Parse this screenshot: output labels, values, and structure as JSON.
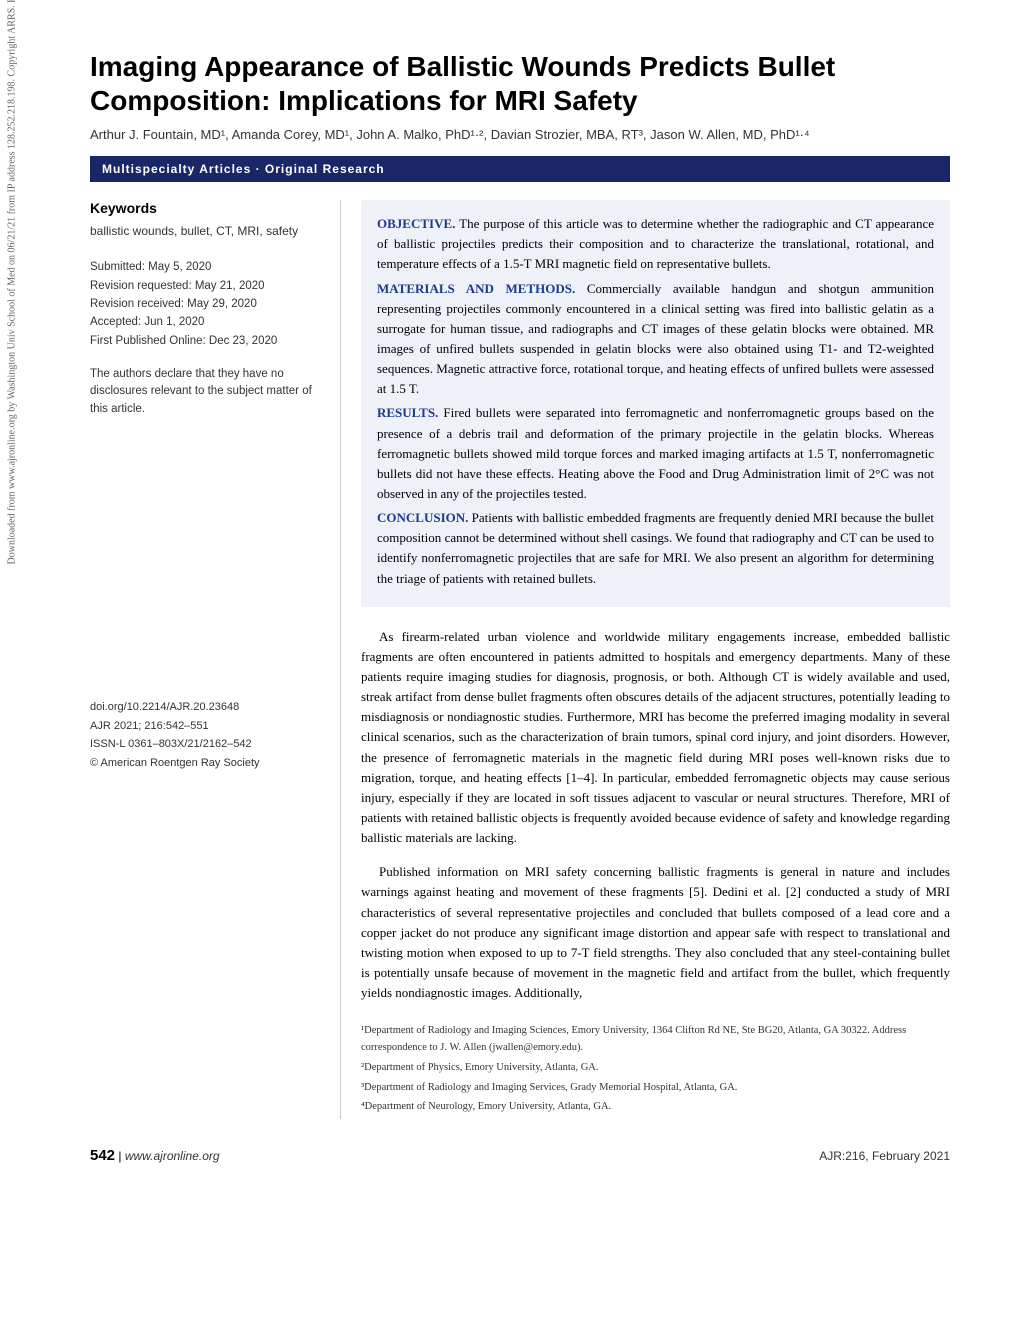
{
  "watermark": "Downloaded from www.ajronline.org by Washington Univ School of Med on 06/21/21 from IP address 128.252.218.198. Copyright ARRS. For personal use only; all rights reserved",
  "title": "Imaging Appearance of Ballistic Wounds Predicts Bullet Composition: Implications for MRI Safety",
  "authors": "Arthur J. Fountain, MD¹, Amanda Corey, MD¹, John A. Malko, PhD¹·², Davian Strozier, MBA, RT³, Jason W. Allen, MD, PhD¹·⁴",
  "section_bar": "Multispecialty Articles · Original Research",
  "sidebar": {
    "keywords_heading": "Keywords",
    "keywords": "ballistic wounds, bullet, CT, MRI, safety",
    "dates": {
      "submitted": "Submitted: May 5, 2020",
      "revision_requested": "Revision requested: May 21, 2020",
      "revision_received": "Revision received: May 29, 2020",
      "accepted": "Accepted: Jun 1, 2020",
      "first_published": "First Published Online: Dec 23, 2020"
    },
    "disclosure": "The authors declare that they have no disclosures relevant to the subject matter of this article.",
    "pubinfo": {
      "doi": "doi.org/10.2214/AJR.20.23648",
      "ajr": "AJR 2021; 216:542–551",
      "issn": "ISSN-L 0361–803X/21/2162–542",
      "copyright": "© American Roentgen Ray Society"
    }
  },
  "abstract": {
    "objective_label": "OBJECTIVE.",
    "objective": " The purpose of this article was to determine whether the radiographic and CT appearance of ballistic projectiles predicts their composition and to characterize the translational, rotational, and temperature effects of a 1.5-T MRI magnetic field on representative bullets.",
    "materials_label": "MATERIALS AND METHODS.",
    "materials": " Commercially available handgun and shotgun ammunition representing projectiles commonly encountered in a clinical setting was fired into ballistic gelatin as a surrogate for human tissue, and radiographs and CT images of these gelatin blocks were obtained. MR images of unfired bullets suspended in gelatin blocks were also obtained using T1- and T2-weighted sequences. Magnetic attractive force, rotational torque, and heating effects of unfired bullets were assessed at 1.5 T.",
    "results_label": "RESULTS.",
    "results": " Fired bullets were separated into ferromagnetic and nonferromagnetic groups based on the presence of a debris trail and deformation of the primary projectile in the gelatin blocks. Whereas ferromagnetic bullets showed mild torque forces and marked imaging artifacts at 1.5 T, nonferromagnetic bullets did not have these effects. Heating above the Food and Drug Administration limit of 2°C was not observed in any of the projectiles tested.",
    "conclusion_label": "CONCLUSION.",
    "conclusion": " Patients with ballistic embedded fragments are frequently denied MRI because the bullet composition cannot be determined without shell casings. We found that radiography and CT can be used to identify nonferromagnetic projectiles that are safe for MRI. We also present an algorithm for determining the triage of patients with retained bullets."
  },
  "body": {
    "p1": "As firearm-related urban violence and worldwide military engagements increase, embedded ballistic fragments are often encountered in patients admitted to hospitals and emergency departments. Many of these patients require imaging studies for diagnosis, prognosis, or both. Although CT is widely available and used, streak artifact from dense bullet fragments often obscures details of the adjacent structures, potentially leading to misdiagnosis or nondiagnostic studies. Furthermore, MRI has become the preferred imaging modality in several clinical scenarios, such as the characterization of brain tumors, spinal cord injury, and joint disorders. However, the presence of ferromagnetic materials in the magnetic field during MRI poses well-known risks due to migration, torque, and heating effects [1–4]. In particular, embedded ferromagnetic objects may cause serious injury, especially if they are located in soft tissues adjacent to vascular or neural structures. Therefore, MRI of patients with retained ballistic objects is frequently avoided because evidence of safety and knowledge regarding ballistic materials are lacking.",
    "p2": "Published information on MRI safety concerning ballistic fragments is general in nature and includes warnings against heating and movement of these fragments [5]. Dedini et al. [2] conducted a study of MRI characteristics of several representative projectiles and concluded that bullets composed of a lead core and a copper jacket do not produce any significant image distortion and appear safe with respect to translational and twisting motion when exposed to up to 7-T field strengths. They also concluded that any steel-containing bullet is potentially unsafe because of movement in the magnetic field and artifact from the bullet, which frequently yields nondiagnostic images. Additionally,"
  },
  "affiliations": {
    "a1": "¹Department of Radiology and Imaging Sciences, Emory University, 1364 Clifton Rd NE, Ste BG20, Atlanta, GA 30322. Address correspondence to J. W. Allen (jwallen@emory.edu).",
    "a2": "²Department of Physics, Emory University, Atlanta, GA.",
    "a3": "³Department of Radiology and Imaging Services, Grady Memorial Hospital, Atlanta, GA.",
    "a4": "⁴Department of Neurology, Emory University, Atlanta, GA."
  },
  "footer": {
    "pagenum": "542",
    "url": "www.ajronline.org",
    "right": "AJR:216, February 2021"
  },
  "colors": {
    "section_bar_bg": "#1a2766",
    "abstract_bg": "#eef1f7",
    "abstract_label": "#1a3a8a",
    "border": "#cccccc"
  }
}
